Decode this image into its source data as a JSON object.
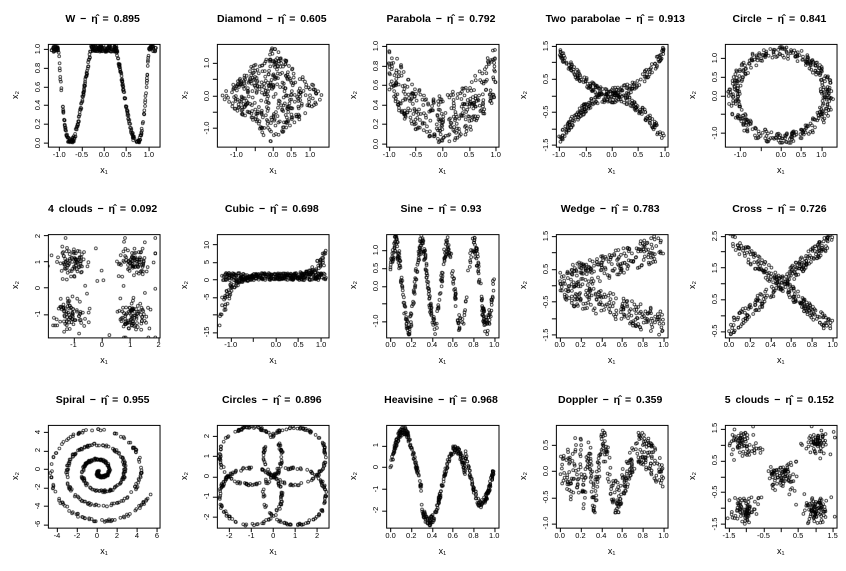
{
  "figure": {
    "background": "#ffffff",
    "point_color": "#000000",
    "marker": "open-circle",
    "grid": {
      "rows": 3,
      "cols": 5
    },
    "description": "Grid of 15 scatter plots of simulated dependence patterns, each titled with the pattern name and its estimated dependence coefficient eta-hat"
  },
  "chart_data": {
    "type": "scatter",
    "panels": [
      {
        "name": "W",
        "eta": 0.895,
        "title": "W − η̂ = 0.895",
        "xlabel": "x₁",
        "ylabel": "x₂",
        "pattern": "W-shaped curve, y capped at 1, x uniform on [-1.17,1.17]",
        "xlim": [
          -1.25,
          1.25
        ],
        "ylim": [
          -0.04,
          1.05
        ],
        "xticks": {
          "values": [
            -1,
            -0.5,
            0,
            0.5,
            1
          ],
          "labels": [
            "-1.0",
            "-0.5",
            "0.0",
            "0.5",
            "1.0"
          ]
        },
        "yticks": {
          "values": [
            0,
            0.2,
            0.4,
            0.6,
            0.8,
            1
          ],
          "labels": [
            "0.0",
            "0.2",
            "0.4",
            "0.6",
            "0.8",
            "1.0"
          ]
        },
        "generator": {
          "type": "w",
          "n": 400,
          "seed": 101,
          "x_range": [
            -1.17,
            1.17
          ],
          "coef": 4.5,
          "shift": 0.55,
          "noise": 0.035
        }
      },
      {
        "name": "Diamond",
        "eta": 0.605,
        "title": "Diamond − η̂ = 0.605",
        "xlabel": "x₁",
        "ylabel": "x₂",
        "pattern": "uniform on a rotated square (diamond) with vertices near (±1.45,0),(0,±1.5)",
        "xlim": [
          -1.52,
          1.52
        ],
        "ylim": [
          -1.58,
          1.58
        ],
        "xticks": {
          "values": [
            -1,
            -0.5,
            0,
            0.5,
            1
          ],
          "labels": [
            "-1.0",
            "",
            "0.0",
            "0.5",
            "1.0"
          ]
        },
        "yticks": {
          "values": [
            -1,
            -0.5,
            0,
            0.5,
            1
          ],
          "labels": [
            "-1.0",
            "",
            "0.0",
            "",
            "1.0"
          ]
        },
        "generator": {
          "type": "diamond",
          "n": 400,
          "seed": 102,
          "sx": 0.72,
          "sy": 0.75
        }
      },
      {
        "name": "Parabola",
        "eta": 0.792,
        "title": "Parabola − η̂ = 0.792",
        "xlabel": "x₁",
        "ylabel": "x₂",
        "pattern": "y = (x² + U(0,1))/2, x uniform on [-1,1]",
        "xlim": [
          -1.05,
          1.05
        ],
        "ylim": [
          -0.03,
          1.02
        ],
        "xticks": {
          "values": [
            -1,
            -0.5,
            0,
            0.5,
            1
          ],
          "labels": [
            "-1.0",
            "-0.5",
            "0.0",
            "0.5",
            "1.0"
          ]
        },
        "yticks": {
          "values": [
            0,
            0.2,
            0.4,
            0.6,
            0.8,
            1
          ],
          "labels": [
            "0.0",
            "0.2",
            "0.4",
            "0.6",
            "0.8",
            "1.0"
          ]
        },
        "generator": {
          "type": "parabola",
          "n": 360,
          "seed": 103
        }
      },
      {
        "name": "Two parabolae",
        "eta": 0.913,
        "title": "Two parabolae − η̂ = 0.913",
        "xlabel": "x₁",
        "ylabel": "x₂",
        "pattern": "y = ±(1.28x² + 0.07) + noise, two mirrored parabolic branches",
        "xlim": [
          -1.06,
          1.06
        ],
        "ylim": [
          -1.55,
          1.55
        ],
        "xticks": {
          "values": [
            -1,
            -0.5,
            0,
            0.5,
            1
          ],
          "labels": [
            "-1.0",
            "-0.5",
            "0.0",
            "0.5",
            "1.0"
          ]
        },
        "yticks": {
          "values": [
            -1.5,
            -1,
            -0.5,
            0,
            0.5,
            1,
            1.5
          ],
          "labels": [
            "-1.5",
            "",
            "-0.5",
            "",
            "0.5",
            "",
            "1.5"
          ]
        },
        "generator": {
          "type": "two_parabolae",
          "n": 400,
          "seed": 104,
          "a": 1.28,
          "b": 0.07,
          "noise": 0.16
        }
      },
      {
        "name": "Circle",
        "eta": 0.841,
        "title": "Circle − η̂ = 0.841",
        "xlabel": "x₁",
        "ylabel": "x₂",
        "pattern": "ring of radius ≈ 1.15 ± 0.14 centred at origin",
        "xlim": [
          -1.38,
          1.38
        ],
        "ylim": [
          -1.38,
          1.38
        ],
        "xticks": {
          "values": [
            -1,
            -0.5,
            0,
            0.5,
            1
          ],
          "labels": [
            "-1.0",
            "",
            "0.0",
            "0.5",
            "1.0"
          ]
        },
        "yticks": {
          "values": [
            -1,
            -0.5,
            0,
            0.5,
            1
          ],
          "labels": [
            "-1.0",
            "",
            "0.0",
            "0.5",
            "1.0"
          ]
        },
        "generator": {
          "type": "ring",
          "n": 400,
          "seed": 105,
          "r": 1.15,
          "r_noise": 0.14
        }
      },
      {
        "name": "4 clouds",
        "eta": 0.092,
        "title": "4 clouds − η̂ = 0.092",
        "xlabel": "x₁",
        "ylabel": "x₂",
        "pattern": "four Gaussian clusters centred at (±1, ±1)",
        "xlim": [
          -1.9,
          2.05
        ],
        "ylim": [
          -1.9,
          2.05
        ],
        "xticks": {
          "values": [
            -1,
            0,
            1,
            2
          ],
          "labels": [
            "-1",
            "0",
            "1",
            "2"
          ]
        },
        "yticks": {
          "values": [
            -1,
            0,
            1,
            2
          ],
          "labels": [
            "-1",
            "0",
            "1",
            "2"
          ]
        },
        "generator": {
          "type": "clouds",
          "n": 360,
          "seed": 106,
          "centers": [
            [
              -1.02,
              1.05
            ],
            [
              1.08,
              1.02
            ],
            [
              -1.02,
              -1.02
            ],
            [
              1.08,
              -1.05
            ]
          ],
          "sigma": 0.28,
          "sigma_wide": 0.55,
          "wide_frac": 0.15,
          "trail": 0,
          "clamp": 1.9
        }
      },
      {
        "name": "Cubic",
        "eta": 0.698,
        "title": "Cubic − η̂ = 0.698",
        "xlabel": "x₁",
        "ylabel": "x₂",
        "pattern": "dense band near y∈[0,2] with quintic envelope 5.5x⁵ diving to -16 on the left and rising to +12 on the right",
        "xlim": [
          -1.3,
          1.18
        ],
        "ylim": [
          -16.5,
          13
        ],
        "xticks": {
          "values": [
            -1,
            -0.5,
            0,
            0.5,
            1
          ],
          "labels": [
            "-1.0",
            "",
            "0.0",
            "0.5",
            "1.0"
          ]
        },
        "yticks": {
          "values": [
            -15,
            -10,
            -5,
            0,
            5,
            10
          ],
          "labels": [
            "-15",
            "",
            "-5",
            "0",
            "5",
            "10"
          ]
        },
        "generator": {
          "type": "cubic",
          "n": 450,
          "seed": 107,
          "x_range": [
            -1.24,
            1.13
          ],
          "coef": 5.5,
          "band": 1.9,
          "mix": 0.45
        }
      },
      {
        "name": "Sine",
        "eta": 0.93,
        "title": "Sine − η̂ = 0.93",
        "xlabel": "x₁",
        "ylabel": "x₂",
        "pattern": "y = 1.15·sin(8πx) + noise, four full periods on [0,1]",
        "xlim": [
          -0.04,
          1.04
        ],
        "ylim": [
          -1.45,
          1.45
        ],
        "xticks": {
          "values": [
            0,
            0.2,
            0.4,
            0.6,
            0.8,
            1
          ],
          "labels": [
            "0.0",
            "0.2",
            "0.4",
            "0.6",
            "0.8",
            "1.0"
          ]
        },
        "yticks": {
          "values": [
            -1,
            -0.5,
            0,
            0.5,
            1
          ],
          "labels": [
            "-1.0",
            "",
            "0.0",
            "0.5",
            "1.0"
          ]
        },
        "generator": {
          "type": "sine",
          "n": 400,
          "seed": 108,
          "amp": 1.15,
          "omega": 25.133,
          "phase": 0.3,
          "noise": 0.27
        }
      },
      {
        "name": "Wedge",
        "eta": 0.783,
        "title": "Wedge − η̂ = 0.783",
        "xlabel": "x₁",
        "ylabel": "x₂",
        "pattern": "y = ±(0.1 + 1.08x) + noise, two arms opening to the right",
        "xlim": [
          -0.04,
          1.04
        ],
        "ylim": [
          -1.58,
          1.55
        ],
        "xticks": {
          "values": [
            0,
            0.2,
            0.4,
            0.6,
            0.8,
            1
          ],
          "labels": [
            "0.0",
            "0.2",
            "0.4",
            "0.6",
            "0.8",
            "1.0"
          ]
        },
        "yticks": {
          "values": [
            -1.5,
            -1,
            -0.5,
            0,
            0.5,
            1,
            1.5
          ],
          "labels": [
            "-1.5",
            "",
            "-0.5",
            "",
            "0.5",
            "",
            "1.5"
          ]
        },
        "generator": {
          "type": "wedge",
          "n": 400,
          "seed": 109,
          "a": 0.1,
          "b": 1.08,
          "noise": 0.4
        }
      },
      {
        "name": "Cross",
        "eta": 0.726,
        "title": "Cross − η̂ = 0.726",
        "xlabel": "x₁",
        "ylabel": "x₂",
        "pattern": "two diagonal bands crossing at (0.5, 1.0), slopes ±2.85",
        "xlim": [
          -0.04,
          1.04
        ],
        "ylim": [
          -0.7,
          2.55
        ],
        "xticks": {
          "values": [
            0,
            0.2,
            0.4,
            0.6,
            0.8,
            1
          ],
          "labels": [
            "0.0",
            "0.2",
            "0.4",
            "0.6",
            "0.8",
            "1.0"
          ]
        },
        "yticks": {
          "values": [
            -0.5,
            0,
            0.5,
            1,
            1.5,
            2,
            2.5
          ],
          "labels": [
            "-0.5",
            "",
            "0.5",
            "",
            "1.5",
            "",
            "2.5"
          ]
        },
        "generator": {
          "type": "cross",
          "n": 400,
          "seed": 110,
          "cx": 0.5,
          "cy": 1,
          "slope": 2.85,
          "noise": 0.25
        }
      },
      {
        "name": "Spiral",
        "eta": 0.955,
        "title": "Spiral − η̂ = 0.955",
        "xlabel": "x₁",
        "ylabel": "x₂",
        "pattern": "Archimedean spiral, ≈3.4 turns, outer radius ≈ 5.6, dense at centre",
        "xlim": [
          -4.9,
          6.3
        ],
        "ylim": [
          -6.35,
          4.75
        ],
        "xticks": {
          "values": [
            -4,
            -2,
            0,
            2,
            4,
            6
          ],
          "labels": [
            "-4",
            "-2",
            "0",
            "2",
            "4",
            "6"
          ]
        },
        "yticks": {
          "values": [
            -6,
            -4,
            -2,
            0,
            2,
            4
          ],
          "labels": [
            "-6",
            "-4",
            "-2",
            "0",
            "2",
            "4"
          ]
        },
        "generator": {
          "type": "spiral",
          "n": 430,
          "seed": 111,
          "theta_max": 21.4,
          "r0": 0.15,
          "r1": 5.45,
          "phase": -3,
          "center": [
            0.3,
            -0.3
          ],
          "noise": 0.12
        }
      },
      {
        "name": "Circles",
        "eta": 0.896,
        "title": "Circles − η̂ = 0.896",
        "xlabel": "x₁",
        "ylabel": "x₂",
        "pattern": "four rings of radius √2 centred at (±1, ±1), all passing through the origin",
        "xlim": [
          -2.55,
          2.55
        ],
        "ylim": [
          -2.55,
          2.55
        ],
        "xticks": {
          "values": [
            -2,
            -1,
            0,
            1,
            2
          ],
          "labels": [
            "-2",
            "-1",
            "0",
            "1",
            "2"
          ]
        },
        "yticks": {
          "values": [
            -2,
            -1,
            0,
            1,
            2
          ],
          "labels": [
            "-2",
            "-1",
            "0",
            "1",
            "2"
          ]
        },
        "generator": {
          "type": "four_rings",
          "n": 430,
          "seed": 112,
          "centers": [
            [
              -1,
              1
            ],
            [
              1,
              1
            ],
            [
              -1,
              -1
            ],
            [
              1,
              -1
            ]
          ],
          "r": 1.414,
          "r_noise": 0.05
        }
      },
      {
        "name": "Heavisine",
        "eta": 0.968,
        "title": "Heavisine − η̂ = 0.968",
        "xlabel": "x₁",
        "ylabel": "x₂",
        "pattern": "y = 0.42·(4sin(4πx) − sgn(x−0.3) − sgn(0.72−x)) + noise",
        "xlim": [
          -0.04,
          1.04
        ],
        "ylim": [
          -2.8,
          1.95
        ],
        "xticks": {
          "values": [
            0,
            0.2,
            0.4,
            0.6,
            0.8,
            1
          ],
          "labels": [
            "0.0",
            "0.2",
            "0.4",
            "0.6",
            "0.8",
            "1.0"
          ]
        },
        "yticks": {
          "values": [
            -2,
            -1,
            0,
            1
          ],
          "labels": [
            "-2",
            "-1",
            "0",
            "1"
          ]
        },
        "generator": {
          "type": "heavisine",
          "n": 400,
          "seed": 113,
          "scale": 0.42,
          "noise": 0.2
        }
      },
      {
        "name": "Doppler",
        "eta": 0.359,
        "title": "Doppler − η̂ = 0.359",
        "xlabel": "x₁",
        "ylabel": "x₂",
        "pattern": "doppler wave √(x(1−x))·sin(2.1π/(x+0.05)) with heavy noise",
        "xlim": [
          -0.04,
          1.04
        ],
        "ylim": [
          -1.08,
          0.88
        ],
        "xticks": {
          "values": [
            0,
            0.2,
            0.4,
            0.6,
            0.8,
            1
          ],
          "labels": [
            "0.0",
            "0.2",
            "0.4",
            "0.6",
            "0.8",
            "1.0"
          ]
        },
        "yticks": {
          "values": [
            -1,
            -0.5,
            0,
            0.5
          ],
          "labels": [
            "-1.0",
            "-0.5",
            "0.0",
            "0.5"
          ]
        },
        "generator": {
          "type": "doppler",
          "n": 360,
          "seed": 114,
          "eps": 0.05,
          "freq": 6.6,
          "noise": 0.33
        }
      },
      {
        "name": "5 clouds",
        "eta": 0.152,
        "title": "5 clouds − η̂ = 0.152",
        "xlabel": "x₁",
        "ylabel": "x₂",
        "pattern": "Gaussian clusters at (±1, ±1) and (0,0) with sparse points along the diagonals",
        "xlim": [
          -1.62,
          1.62
        ],
        "ylim": [
          -1.62,
          1.62
        ],
        "xticks": {
          "values": [
            -1.5,
            -1,
            -0.5,
            0,
            0.5,
            1,
            1.5
          ],
          "labels": [
            "-1.5",
            "",
            "-0.5",
            "",
            "0.5",
            "",
            "1.5"
          ]
        },
        "yticks": {
          "values": [
            -1.5,
            -1,
            -0.5,
            0,
            0.5,
            1,
            1.5
          ],
          "labels": [
            "-1.5",
            "",
            "-0.5",
            "",
            "0.5",
            "",
            "1.5"
          ]
        },
        "generator": {
          "type": "clouds",
          "n": 400,
          "seed": 115,
          "centers": [
            [
              -1.05,
              1.05
            ],
            [
              1.05,
              1.05
            ],
            [
              0,
              0
            ],
            [
              -1.05,
              -1.05
            ],
            [
              1.05,
              -1.05
            ]
          ],
          "sigma": 0.19,
          "sigma_wide": 0.3,
          "wide_frac": 0.05,
          "trail": 0.06,
          "clamp": 1.58
        }
      }
    ]
  }
}
